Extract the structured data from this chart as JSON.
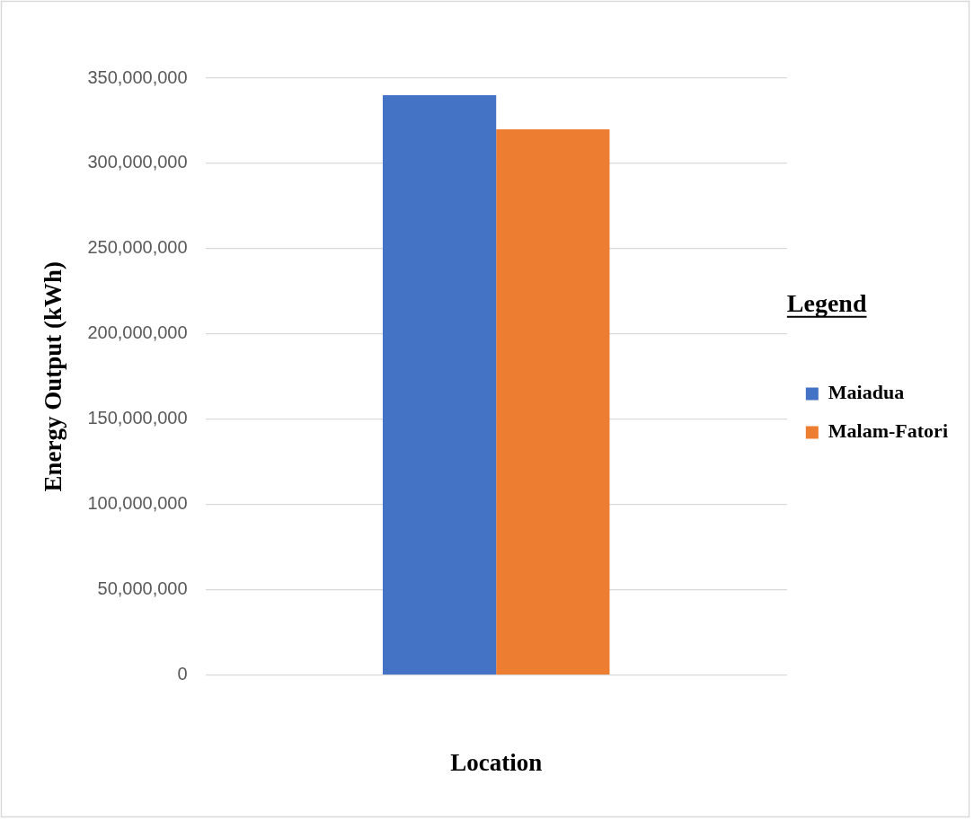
{
  "chart_data": {
    "type": "bar",
    "categories": [
      null
    ],
    "series": [
      {
        "name": "Maiadua",
        "color": "#4472c4",
        "values": [
          340000000
        ]
      },
      {
        "name": "Malam-Fatori",
        "color": "#ed7d31",
        "values": [
          320000000
        ]
      }
    ],
    "xlabel": "Location",
    "ylabel": "Energy Output (kWh)",
    "legend_title": "Legend",
    "ylim": [
      0,
      350000000
    ],
    "yticks": [
      0,
      {
        "value": 50000000,
        "label": "50,000,000"
      },
      {
        "value": 100000000,
        "label": "100,000,000"
      },
      {
        "value": 150000000,
        "label": "150,000,000"
      },
      {
        "value": 200000000,
        "label": "200,000,000"
      },
      {
        "value": 250000000,
        "label": "250,000,000"
      },
      {
        "value": 300000000,
        "label": "300,000,000"
      },
      {
        "value": 350000000,
        "label": "350,000,000"
      }
    ],
    "grid": "y",
    "legend": "right"
  }
}
